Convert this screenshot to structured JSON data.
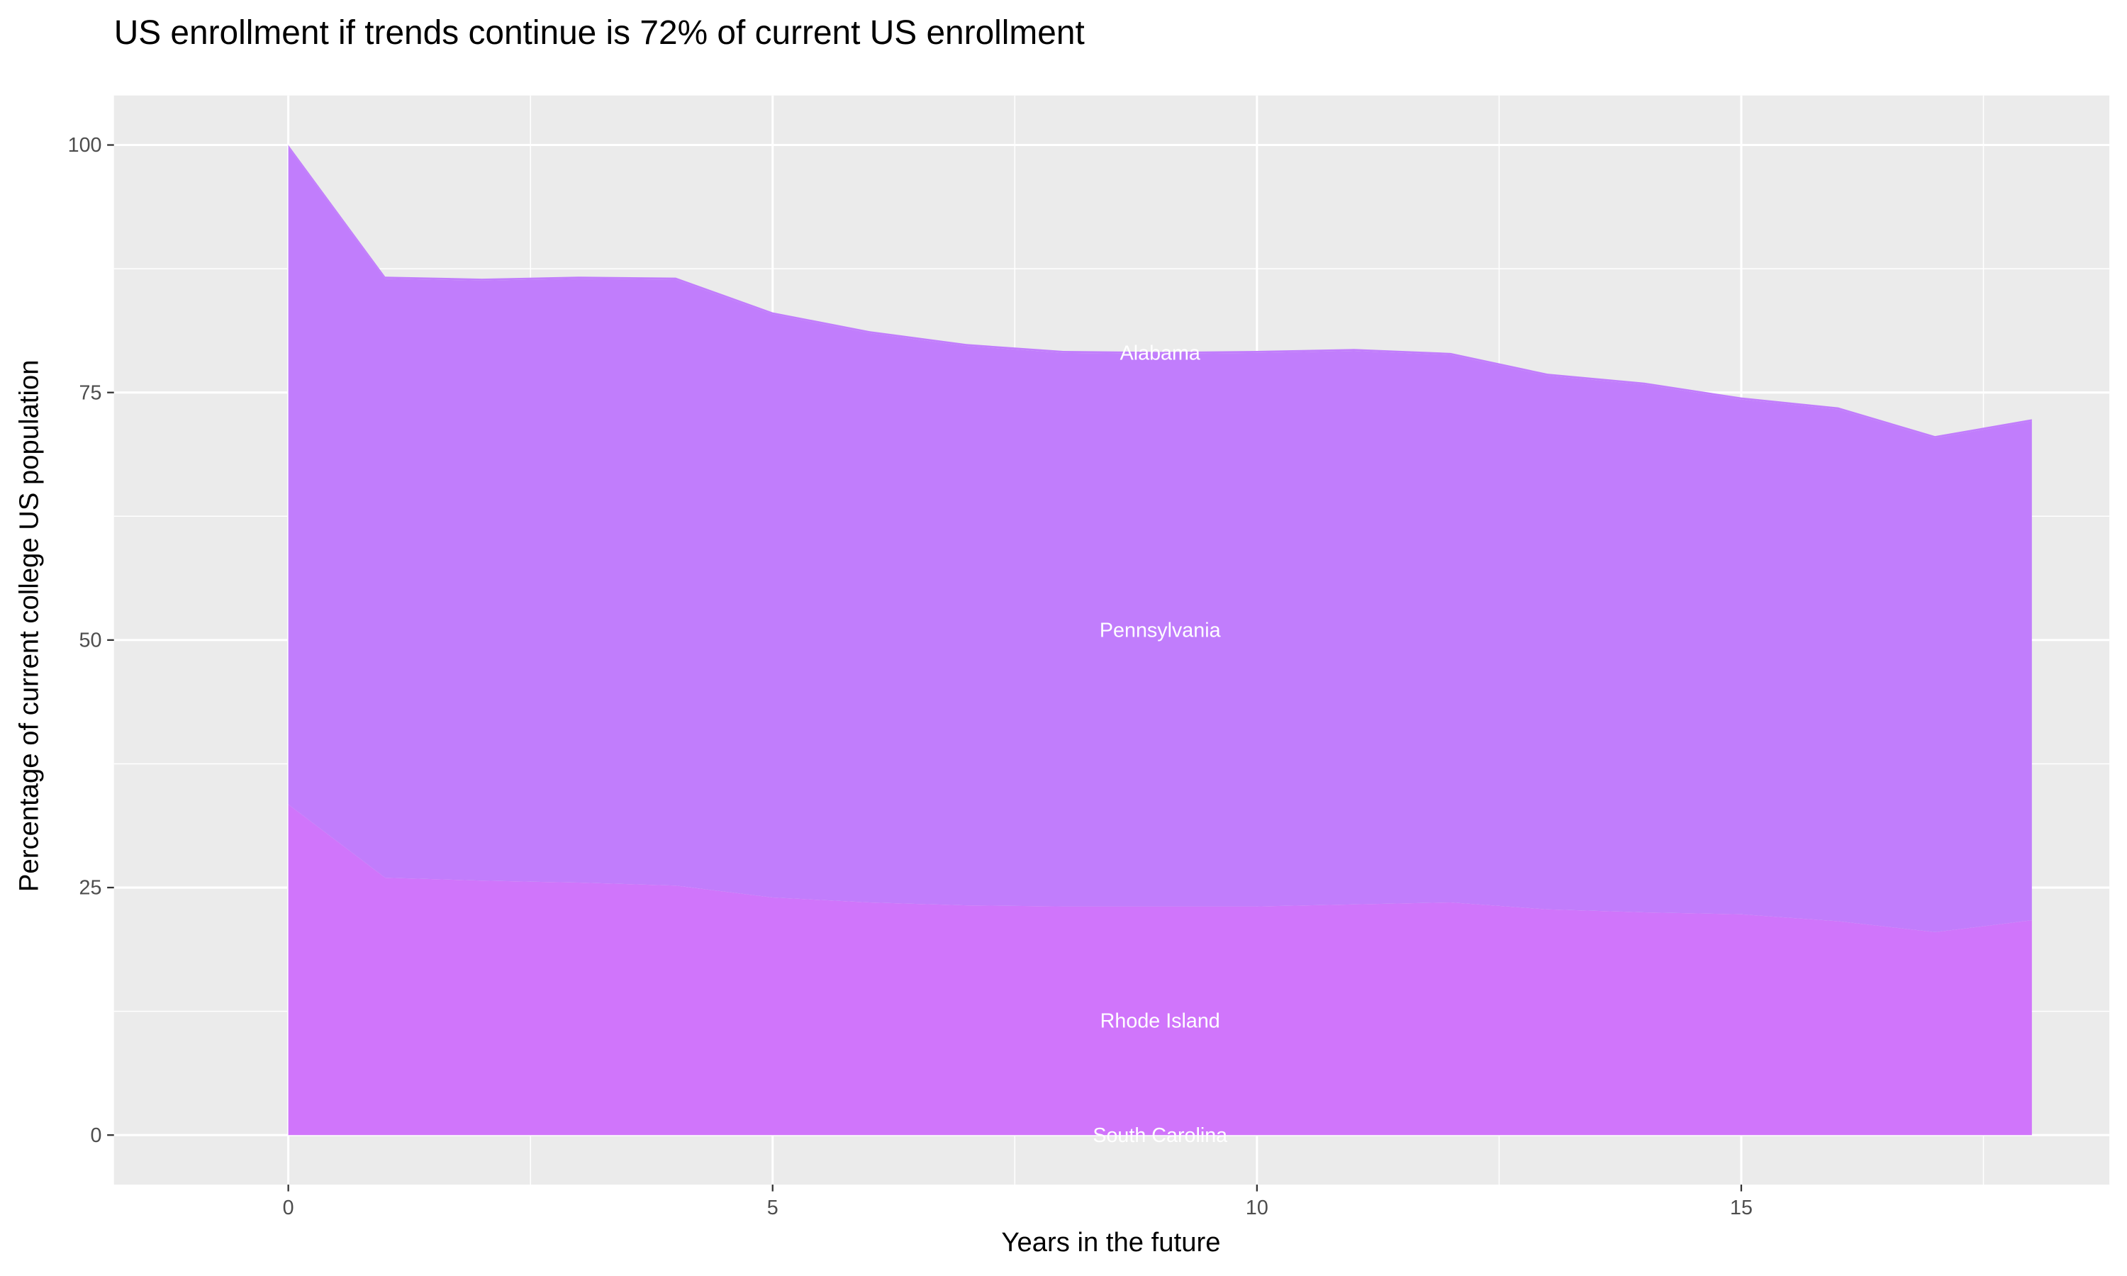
{
  "chart_data": {
    "type": "area",
    "stacked": true,
    "title": "US enrollment if trends continue is 72% of current US enrollment",
    "xlabel": "Years in the future",
    "ylabel": "Percentage of current college US population",
    "xlim": [
      -1.8,
      18.8
    ],
    "ylim": [
      -5,
      105
    ],
    "x_ticks": [
      0,
      5,
      10,
      15
    ],
    "y_ticks": [
      0,
      25,
      50,
      75,
      100
    ],
    "grid": true,
    "background": "#EBEBEB",
    "x": [
      0,
      1,
      2,
      3,
      4,
      5,
      6,
      7,
      8,
      9,
      10,
      11,
      12,
      13,
      14,
      15,
      16,
      17,
      18
    ],
    "series": [
      {
        "name": "South Carolina",
        "color": "#D075FB",
        "values": [
          0,
          0,
          0,
          0,
          0,
          0,
          0,
          0,
          0,
          0,
          0,
          0,
          0,
          0,
          0,
          0,
          0,
          0,
          0
        ]
      },
      {
        "name": "Rhode Island",
        "color": "#D075FB",
        "values": [
          33.4,
          26.0,
          25.7,
          25.5,
          25.2,
          24.0,
          23.5,
          23.2,
          23.1,
          23.1,
          23.1,
          23.3,
          23.5,
          22.8,
          22.5,
          22.3,
          21.6,
          20.5,
          21.7
        ]
      },
      {
        "name": "Pennsylvania",
        "color": "#C17DFC",
        "values": [
          66.4,
          60.5,
          60.6,
          61.0,
          61.2,
          58.9,
          57.5,
          56.5,
          55.9,
          55.8,
          55.9,
          55.9,
          55.3,
          53.9,
          53.3,
          52.0,
          51.7,
          49.9,
          50.4
        ]
      },
      {
        "name": "Alabama",
        "color": "#C17DFC",
        "values": [
          0.2,
          0.2,
          0.2,
          0.2,
          0.2,
          0.2,
          0.2,
          0.2,
          0.2,
          0.2,
          0.2,
          0.2,
          0.2,
          0.2,
          0.2,
          0.2,
          0.2,
          0.2,
          0.2
        ]
      }
    ],
    "label_x": 9
  }
}
